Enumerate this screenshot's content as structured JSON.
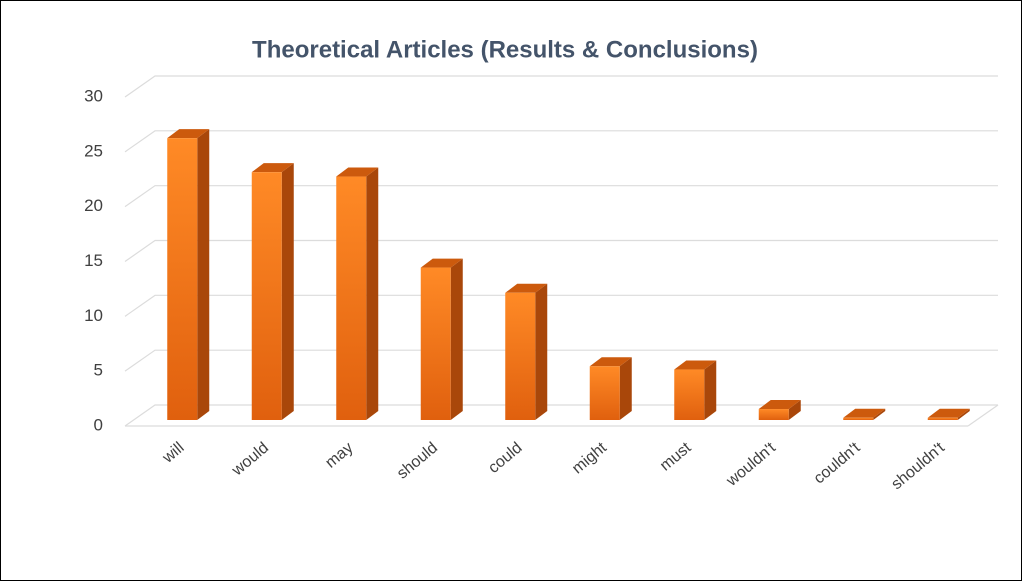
{
  "chart_data": {
    "type": "bar",
    "title": "Theoretical Articles (Results & Conclusions)",
    "categories": [
      "will",
      "would",
      "may",
      "should",
      "could",
      "might",
      "must",
      "wouldn't",
      "couldn't",
      "shouldn't"
    ],
    "values": [
      25.7,
      22.6,
      22.2,
      13.9,
      11.6,
      4.9,
      4.6,
      1,
      0.2,
      0.2
    ],
    "color": "#f47b20",
    "ylim": [
      0,
      30
    ],
    "yticks": [
      0,
      5,
      10,
      15,
      20,
      25,
      30
    ],
    "grid": true
  }
}
